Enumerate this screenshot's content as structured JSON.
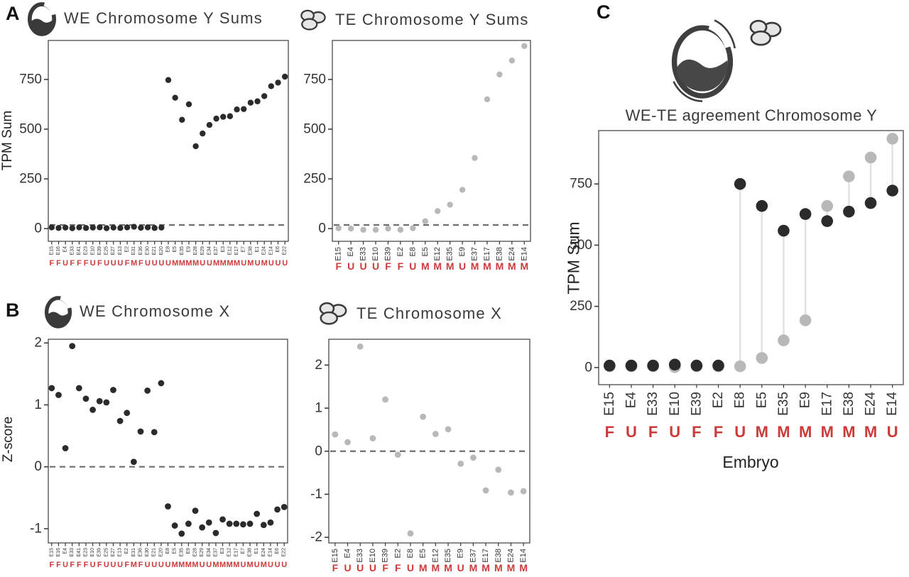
{
  "figure": {
    "panel_labels": {
      "a": "A",
      "b": "B",
      "c": "C"
    },
    "colors": {
      "we_point": "#2b2b2b",
      "te_point": "#b8b8b8",
      "sex_label": "#cc3a3a",
      "dashed_line": "#6e6e6e",
      "connector": "#e2e2e2",
      "axis_text": "#333333"
    }
  },
  "chart_data": [
    {
      "id": "we_chrY",
      "type": "scatter",
      "title": "WE Chromosome Y Sums",
      "icon": "whole-embryo-icon",
      "ylabel": "TPM Sum",
      "yticks": [
        0,
        250,
        500,
        750
      ],
      "ylim": [
        -64,
        946
      ],
      "dashed_line_y": 18,
      "point_color": "#2b2b2b",
      "categories": [
        "E15",
        "E16",
        "E4",
        "E33",
        "E41",
        "E23",
        "E10",
        "E39",
        "E25",
        "E27",
        "E13",
        "E2",
        "E31",
        "E36",
        "E30",
        "E21",
        "E20",
        "E8",
        "E5",
        "E35",
        "E9",
        "E28",
        "E29",
        "E34",
        "E37",
        "E3",
        "E12",
        "E17",
        "E7",
        "E38",
        "E1",
        "E24",
        "E14",
        "E6",
        "E22"
      ],
      "sex_labels": [
        "F",
        "F",
        "U",
        "F",
        "F",
        "F",
        "U",
        "F",
        "U",
        "U",
        "U",
        "F",
        "M",
        "F",
        "U",
        "U",
        "U",
        "U",
        "M",
        "M",
        "M",
        "M",
        "U",
        "U",
        "M",
        "M",
        "M",
        "M",
        "U",
        "M",
        "U",
        "M",
        "U",
        "U",
        "U"
      ],
      "values": [
        6,
        3,
        5,
        2,
        6,
        3,
        5,
        6,
        2,
        5,
        3,
        6,
        9,
        4,
        6,
        3,
        5,
        747,
        658,
        547,
        625,
        414,
        478,
        521,
        553,
        562,
        565,
        599,
        601,
        633,
        640,
        666,
        716,
        734,
        764
      ]
    },
    {
      "id": "te_chrY",
      "type": "scatter",
      "title": "TE Chromosome Y Sums",
      "icon": "trophectoderm-icon",
      "ylabel": "",
      "yticks": [
        0,
        250,
        500,
        750
      ],
      "ylim": [
        -64,
        946
      ],
      "dashed_line_y": 18,
      "point_color": "#b8b8b8",
      "categories": [
        "E15",
        "E4",
        "E33",
        "E10",
        "E39",
        "E2",
        "E8",
        "E5",
        "E12",
        "E35",
        "E9",
        "E37",
        "E17",
        "E38",
        "E24",
        "E14"
      ],
      "sex_labels": [
        "F",
        "U",
        "U",
        "U",
        "F",
        "F",
        "U",
        "M",
        "M",
        "M",
        "U",
        "M",
        "M",
        "M",
        "M",
        "M"
      ],
      "values": [
        2,
        0,
        -6,
        -6,
        0,
        -6,
        2,
        37,
        88,
        120,
        195,
        355,
        650,
        775,
        845,
        918
      ]
    },
    {
      "id": "we_chrX",
      "type": "scatter",
      "title": "WE Chromosome X",
      "icon": "whole-embryo-icon",
      "ylabel": "Z-score",
      "yticks": [
        -1,
        0,
        1,
        2
      ],
      "ylim": [
        -1.23,
        2.06
      ],
      "dashed_line_y": 0,
      "point_color": "#2b2b2b",
      "categories": [
        "E15",
        "E16",
        "E4",
        "E33",
        "E41",
        "E23",
        "E10",
        "E39",
        "E25",
        "E27",
        "E13",
        "E2",
        "E31",
        "E36",
        "E30",
        "E21",
        "E20",
        "E8",
        "E5",
        "E35",
        "E9",
        "E28",
        "E29",
        "E34",
        "E37",
        "E3",
        "E12",
        "E17",
        "E7",
        "E38",
        "E1",
        "E24",
        "E14",
        "E6",
        "E22"
      ],
      "sex_labels": [
        "F",
        "F",
        "U",
        "F",
        "F",
        "F",
        "U",
        "F",
        "U",
        "U",
        "U",
        "F",
        "M",
        "F",
        "U",
        "U",
        "U",
        "U",
        "M",
        "M",
        "M",
        "M",
        "U",
        "U",
        "M",
        "M",
        "M",
        "M",
        "U",
        "M",
        "U",
        "M",
        "U",
        "U",
        "U"
      ],
      "values": [
        1.27,
        1.16,
        0.3,
        1.95,
        1.27,
        1.1,
        0.92,
        1.06,
        1.04,
        1.24,
        0.74,
        0.87,
        0.08,
        0.57,
        1.23,
        0.56,
        1.35,
        -0.64,
        -0.95,
        -1.08,
        -0.92,
        -0.71,
        -0.98,
        -0.9,
        -1.07,
        -0.85,
        -0.92,
        -0.92,
        -0.93,
        -0.92,
        -0.76,
        -0.94,
        -0.9,
        -0.69,
        -0.65
      ]
    },
    {
      "id": "te_chrX",
      "type": "scatter",
      "title": "TE Chromosome X",
      "icon": "trophectoderm-icon",
      "ylabel": "",
      "yticks": [
        -2,
        -1,
        0,
        1,
        2
      ],
      "ylim": [
        -2.13,
        2.6
      ],
      "dashed_line_y": 0,
      "point_color": "#b8b8b8",
      "categories": [
        "E15",
        "E4",
        "E33",
        "E10",
        "E39",
        "E2",
        "E8",
        "E5",
        "E12",
        "E35",
        "E9",
        "E37",
        "E17",
        "E38",
        "E24",
        "E14"
      ],
      "sex_labels": [
        "F",
        "U",
        "U",
        "U",
        "F",
        "F",
        "U",
        "M",
        "M",
        "M",
        "U",
        "M",
        "M",
        "M",
        "M",
        "M"
      ],
      "values": [
        0.39,
        0.21,
        2.43,
        0.3,
        1.2,
        -0.08,
        -1.91,
        0.8,
        0.4,
        0.51,
        -0.29,
        -0.15,
        -0.91,
        -0.43,
        -0.96,
        -0.93
      ]
    },
    {
      "id": "agreement",
      "type": "scatter",
      "title": "WE-TE agreement Chromosome Y",
      "icon": "whole-embryo-and-trophectoderm-icon",
      "ylabel": "TPM Sum",
      "xlabel": "Embryo",
      "yticks": [
        0,
        250,
        500,
        750
      ],
      "ylim": [
        -70,
        968
      ],
      "categories": [
        "E15",
        "E4",
        "E33",
        "E10",
        "E39",
        "E2",
        "E8",
        "E5",
        "E35",
        "E9",
        "E17",
        "E38",
        "E24",
        "E14"
      ],
      "sex_labels": [
        "F",
        "U",
        "F",
        "U",
        "F",
        "F",
        "U",
        "M",
        "M",
        "M",
        "M",
        "M",
        "M",
        "U"
      ],
      "series": [
        {
          "name": "WE",
          "color": "#2b2b2b",
          "values": [
            8,
            8,
            8,
            12,
            8,
            8,
            750,
            660,
            559,
            627,
            598,
            637,
            672,
            723
          ]
        },
        {
          "name": "TE",
          "color": "#b8b8b8",
          "values": [
            5,
            5,
            5,
            2,
            5,
            5,
            5,
            39,
            111,
            193,
            660,
            781,
            858,
            935
          ]
        }
      ]
    }
  ]
}
